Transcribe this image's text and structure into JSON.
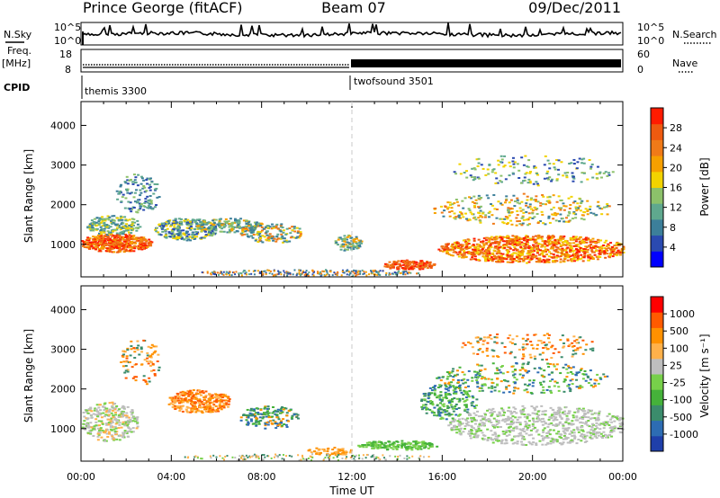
{
  "header": {
    "station": "Prince George (fitACF)",
    "beam": "Beam 07",
    "date": "09/Dec/2011"
  },
  "strip_labels": {
    "nsky": "N.Sky",
    "freq_line1": "Freq.",
    "freq_line2": "[MHz]",
    "cpid": "CPID",
    "nsearch": "N.Search",
    "nave": "Nave",
    "sky_ticks": [
      "10^5",
      "10^0"
    ],
    "search_ticks": [
      "10^5",
      "10^0"
    ],
    "freq_ticks": [
      "18",
      "8"
    ],
    "nave_ticks": [
      "60",
      "0"
    ]
  },
  "cpid_modes": [
    {
      "label": "themis 3300",
      "start_hour": 0
    },
    {
      "label": "twofsound 3501",
      "start_hour": 12
    }
  ],
  "chart_data": [
    {
      "type": "heatmap",
      "name": "power",
      "ylabel": "Slant Range [km]",
      "ylim": [
        180,
        4600
      ],
      "yticks": [
        "1000",
        "2000",
        "3000",
        "4000"
      ],
      "colorbar_label": "Power [dB]",
      "colorbar_ticks": [
        "4",
        "8",
        "12",
        "16",
        "20",
        "24",
        "28"
      ],
      "colorscale": [
        "#0000ff",
        "#2a4ab0",
        "#3c7f9a",
        "#5fa88e",
        "#8cc16a",
        "#f2d300",
        "#f6a000",
        "#f07a18",
        "#ee5a10",
        "#ff1b00"
      ]
    },
    {
      "type": "heatmap",
      "name": "velocity",
      "ylabel": "Slant Range [km]",
      "ylim": [
        180,
        4600
      ],
      "yticks": [
        "1000",
        "2000",
        "3000",
        "4000"
      ],
      "colorbar_label": "Velocity [m s⁻¹]",
      "colorbar_ticks": [
        "1000",
        "500",
        "100",
        "25",
        "-25",
        "-100",
        "-500",
        "-1000"
      ],
      "colorscale": [
        "#1f3faa",
        "#2d6cb3",
        "#3b8c6c",
        "#45b23a",
        "#77d04a",
        "#bebebe",
        "#ffb14a",
        "#ff9100",
        "#ff5a00",
        "#ff0000"
      ]
    }
  ],
  "x_axis": {
    "label": "Time UT",
    "ticks": [
      "00:00",
      "04:00",
      "08:00",
      "12:00",
      "16:00",
      "20:00",
      "00:00"
    ],
    "range_hours": [
      0,
      24
    ]
  }
}
